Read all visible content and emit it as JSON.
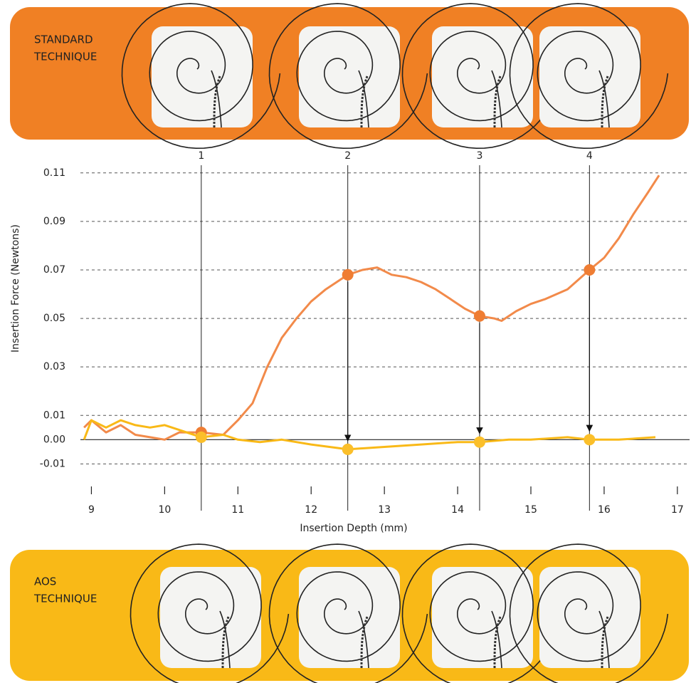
{
  "chart_data": {
    "type": "line",
    "y_axis_label": "Insertion Force (Newtons)",
    "x_axis_label": "Insertion Depth (mm)",
    "top_panel": [
      "STANDARD",
      "TECHNIQUE"
    ],
    "bottom_panel": [
      "AOS",
      "TECHNIQUE"
    ],
    "xlim": [
      8.85,
      17.05
    ],
    "ylim": [
      -0.019,
      0.112
    ],
    "xticks": [
      9,
      10,
      11,
      12,
      13,
      14,
      15,
      16,
      17
    ],
    "yticks": [
      0.11,
      0.09,
      0.07,
      0.05,
      0.03,
      0.01,
      {
        "value": 0,
        "label": "0.00"
      },
      -0.01
    ],
    "grid": true,
    "series": [
      {
        "color": "#f28a4a",
        "x": [
          8.9,
          9.0,
          9.2,
          9.4,
          9.6,
          9.8,
          10.0,
          10.2,
          10.5,
          10.8,
          11.0,
          11.2,
          11.4,
          11.6,
          11.8,
          12.0,
          12.2,
          12.5,
          12.7,
          12.9,
          13.1,
          13.3,
          13.5,
          13.7,
          13.9,
          14.1,
          14.3,
          14.5,
          14.6,
          14.8,
          15.0,
          15.2,
          15.5,
          15.8,
          16.0,
          16.2,
          16.4,
          16.6,
          16.75
        ],
        "values": [
          0.005,
          0.008,
          0.003,
          0.006,
          0.002,
          0.001,
          0.0,
          0.003,
          0.003,
          0.002,
          0.008,
          0.015,
          0.03,
          0.042,
          0.05,
          0.057,
          0.062,
          0.068,
          0.07,
          0.071,
          0.068,
          0.067,
          0.065,
          0.062,
          0.058,
          0.054,
          0.051,
          0.05,
          0.049,
          0.053,
          0.056,
          0.058,
          0.062,
          0.07,
          0.075,
          0.083,
          0.093,
          0.102,
          0.109
        ]
      },
      {
        "color": "#f9b917",
        "x": [
          8.9,
          9.0,
          9.2,
          9.4,
          9.6,
          9.8,
          10.0,
          10.2,
          10.5,
          10.8,
          11.0,
          11.3,
          11.6,
          12.0,
          12.5,
          13.0,
          13.5,
          14.0,
          14.3,
          14.7,
          15.0,
          15.5,
          15.8,
          16.2,
          16.7
        ],
        "values": [
          0.0,
          0.008,
          0.005,
          0.008,
          0.006,
          0.005,
          0.006,
          0.004,
          0.001,
          0.002,
          0.0,
          -0.001,
          0.0,
          -0.002,
          -0.004,
          -0.003,
          -0.002,
          -0.001,
          -0.001,
          0.0,
          0.0,
          0.001,
          0.0,
          0.0,
          0.001
        ]
      }
    ],
    "stages": [
      {
        "label": "1",
        "depth": 10.5,
        "standard": 0.003,
        "aos": 0.001
      },
      {
        "label": "2",
        "depth": 12.5,
        "standard": 0.068,
        "aos": -0.004
      },
      {
        "label": "3",
        "depth": 14.3,
        "standard": 0.051,
        "aos": -0.001
      },
      {
        "label": "4",
        "depth": 15.8,
        "standard": 0.07,
        "aos": 0.0
      }
    ]
  }
}
